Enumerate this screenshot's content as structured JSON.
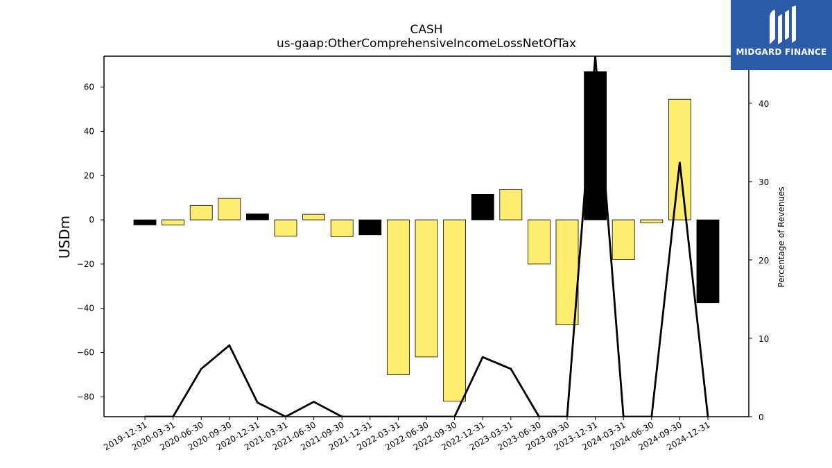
{
  "chart_data": {
    "type": "bar",
    "title": "CASH",
    "subtitle": "us-gaap:OtherComprehensiveIncomeLossNetOfTax",
    "ylabel": "USDm",
    "y2label": "Percentage of Revenues",
    "ylim": [
      -89,
      74
    ],
    "y2lim": [
      0,
      46
    ],
    "yticks": [
      60,
      40,
      20,
      0,
      -20,
      -40,
      -60,
      -80
    ],
    "y2ticks": [
      0,
      10,
      20,
      30,
      40
    ],
    "grid": false,
    "categories": [
      "2019-12-31",
      "2020-03-31",
      "2020-06-30",
      "2020-09-30",
      "2020-12-31",
      "2021-03-31",
      "2021-06-30",
      "2021-09-30",
      "2021-12-31",
      "2022-03-31",
      "2022-06-30",
      "2022-09-30",
      "2022-12-31",
      "2023-03-31",
      "2023-06-30",
      "2023-09-30",
      "2023-12-31",
      "2024-03-31",
      "2024-06-30",
      "2024-09-30",
      "2024-12-31"
    ],
    "values": [
      -2.3,
      -2.3,
      6.5,
      9.7,
      2.7,
      -7.4,
      2.5,
      -7.6,
      -6.8,
      -70,
      -62,
      -82,
      11.5,
      13.7,
      -20,
      -47.5,
      67,
      -18,
      -1.3,
      54.5,
      -37.5
    ],
    "bar_colors": [
      "#000000",
      "#ffed6f",
      "#ffed6f",
      "#ffed6f",
      "#000000",
      "#ffed6f",
      "#ffed6f",
      "#ffed6f",
      "#000000",
      "#ffed6f",
      "#ffed6f",
      "#ffed6f",
      "#000000",
      "#ffed6f",
      "#ffed6f",
      "#ffed6f",
      "#000000",
      "#ffed6f",
      "#ffed6f",
      "#ffed6f",
      "#000000"
    ],
    "line_series": {
      "values": [
        0,
        0,
        6.1,
        9.1,
        1.8,
        0,
        1.9,
        0,
        0,
        0,
        0,
        0,
        7.6,
        6.1,
        0,
        0,
        46,
        0,
        0,
        32.5,
        0
      ]
    }
  },
  "logo": {
    "text": "MIDGARD FINANCE",
    "color": "#2a5caa"
  }
}
